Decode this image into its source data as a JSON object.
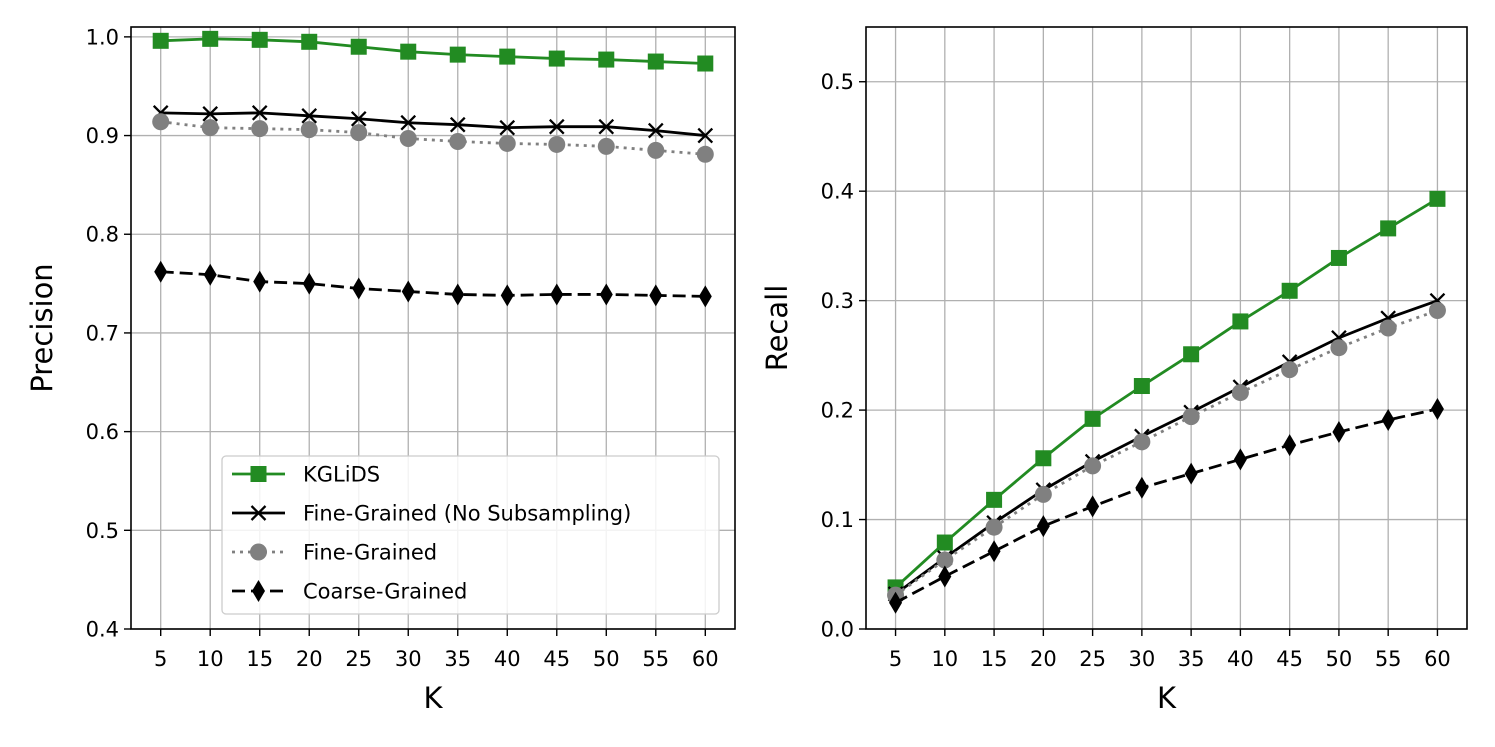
{
  "chart_data": [
    {
      "type": "line",
      "title": "",
      "xlabel": "K",
      "ylabel": "Precision",
      "ylim": [
        0.4,
        1.01
      ],
      "yticks": [
        0.4,
        0.5,
        0.6,
        0.7,
        0.8,
        0.9,
        1.0
      ],
      "ytick_labels": [
        "0.4",
        "0.5",
        "0.6",
        "0.7",
        "0.8",
        "0.9",
        "1.0"
      ],
      "x": [
        5,
        10,
        15,
        20,
        25,
        30,
        35,
        40,
        45,
        50,
        55,
        60
      ],
      "x_labels": [
        "5",
        "10",
        "15",
        "20",
        "25",
        "30",
        "35",
        "40",
        "45",
        "50",
        "55",
        "60"
      ],
      "grid": true,
      "legend_position": "lower-right",
      "series": [
        {
          "name": "KGLiDS",
          "color": "#228b22",
          "marker": "square",
          "linestyle": "solid",
          "values": [
            0.996,
            0.998,
            0.997,
            0.995,
            0.99,
            0.985,
            0.982,
            0.98,
            0.978,
            0.977,
            0.975,
            0.973
          ]
        },
        {
          "name": "Fine-Grained (No Subsampling)",
          "color": "#000000",
          "marker": "x",
          "linestyle": "solid",
          "values": [
            0.923,
            0.922,
            0.923,
            0.92,
            0.917,
            0.913,
            0.911,
            0.908,
            0.909,
            0.909,
            0.905,
            0.9
          ]
        },
        {
          "name": "Fine-Grained",
          "color": "#808080",
          "marker": "circle",
          "linestyle": "dotted",
          "values": [
            0.914,
            0.908,
            0.907,
            0.906,
            0.903,
            0.897,
            0.894,
            0.892,
            0.891,
            0.889,
            0.885,
            0.881
          ]
        },
        {
          "name": "Coarse-Grained",
          "color": "#000000",
          "marker": "diamond",
          "linestyle": "dashed",
          "values": [
            0.762,
            0.759,
            0.752,
            0.75,
            0.745,
            0.742,
            0.739,
            0.738,
            0.739,
            0.739,
            0.738,
            0.737
          ]
        }
      ]
    },
    {
      "type": "line",
      "title": "",
      "xlabel": "K",
      "ylabel": "Recall",
      "ylim": [
        0.0,
        0.55
      ],
      "yticks": [
        0.0,
        0.1,
        0.2,
        0.3,
        0.4,
        0.5
      ],
      "ytick_labels": [
        "0.0",
        "0.1",
        "0.2",
        "0.3",
        "0.4",
        "0.5"
      ],
      "x": [
        5,
        10,
        15,
        20,
        25,
        30,
        35,
        40,
        45,
        50,
        55,
        60
      ],
      "x_labels": [
        "5",
        "10",
        "15",
        "20",
        "25",
        "30",
        "35",
        "40",
        "45",
        "50",
        "55",
        "60"
      ],
      "grid": true,
      "series": [
        {
          "name": "KGLiDS",
          "color": "#228b22",
          "marker": "square",
          "linestyle": "solid",
          "values": [
            0.038,
            0.079,
            0.118,
            0.156,
            0.192,
            0.222,
            0.251,
            0.281,
            0.309,
            0.339,
            0.366,
            0.393
          ]
        },
        {
          "name": "Fine-Grained (No Subsampling)",
          "color": "#000000",
          "marker": "x",
          "linestyle": "solid",
          "values": [
            0.032,
            0.065,
            0.097,
            0.127,
            0.153,
            0.176,
            0.198,
            0.221,
            0.244,
            0.266,
            0.284,
            0.3
          ]
        },
        {
          "name": "Fine-Grained",
          "color": "#808080",
          "marker": "circle",
          "linestyle": "dotted",
          "values": [
            0.031,
            0.063,
            0.093,
            0.123,
            0.149,
            0.171,
            0.194,
            0.216,
            0.237,
            0.257,
            0.275,
            0.291
          ]
        },
        {
          "name": "Coarse-Grained",
          "color": "#000000",
          "marker": "diamond",
          "linestyle": "dashed",
          "values": [
            0.024,
            0.048,
            0.071,
            0.094,
            0.112,
            0.129,
            0.142,
            0.155,
            0.168,
            0.18,
            0.191,
            0.201
          ]
        }
      ]
    }
  ]
}
